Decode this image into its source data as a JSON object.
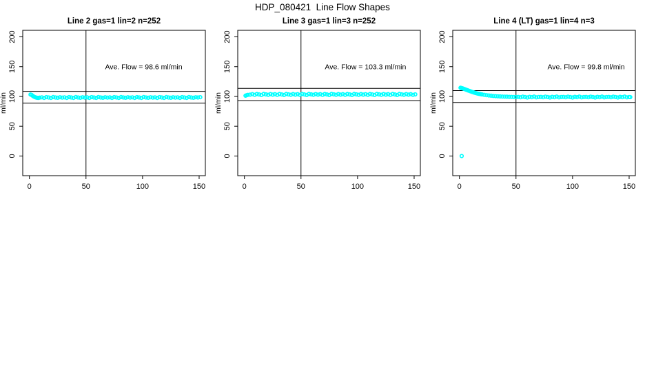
{
  "page_title": "HDP_080421  Line Flow Shapes",
  "colors": {
    "points": "#00FFFF",
    "axis": "#000000",
    "text": "#000000",
    "background": "#FFFFFF"
  },
  "chart_data": [
    {
      "type": "scatter",
      "title": "Line 2 gas=1 lin=2 n=252",
      "n": 252,
      "ave_flow_ml_min": 98.6,
      "annotation": {
        "label": "Ave. Flow =  98.6  ml/min",
        "x": 101,
        "y": 150
      },
      "ylabel": "ml/min",
      "xticks": [
        0,
        50,
        100,
        150
      ],
      "yticks": [
        0,
        50,
        100,
        150,
        200
      ],
      "xlim": [
        -5.9,
        155.5
      ],
      "ylim": [
        -33,
        211
      ],
      "vline_x": 50,
      "hlines": [
        108.5,
        88.7
      ],
      "points": [
        [
          1,
          103.2
        ],
        [
          2,
          102.4
        ],
        [
          3,
          100.9
        ],
        [
          4,
          99.6
        ],
        [
          5,
          98.7
        ],
        [
          6,
          98.1
        ],
        [
          7,
          97.7
        ],
        [
          8,
          97.5
        ],
        [
          9,
          98
        ],
        [
          11,
          98.5
        ],
        [
          13,
          97.6
        ],
        [
          15,
          98.8
        ],
        [
          17,
          98.2
        ],
        [
          19,
          97.5
        ],
        [
          21,
          98.9
        ],
        [
          23,
          98.3
        ],
        [
          25,
          97.8
        ],
        [
          27,
          98.6
        ],
        [
          29,
          98
        ],
        [
          31,
          98.5
        ],
        [
          33,
          97.6
        ],
        [
          35,
          98.8
        ],
        [
          37,
          98.2
        ],
        [
          39,
          97.5
        ],
        [
          41,
          98.9
        ],
        [
          43,
          98.3
        ],
        [
          45,
          97.8
        ],
        [
          47,
          98.6
        ],
        [
          49,
          98
        ],
        [
          51,
          98.5
        ],
        [
          53,
          97.6
        ],
        [
          55,
          98.8
        ],
        [
          57,
          98.2
        ],
        [
          59,
          97.5
        ],
        [
          61,
          98.9
        ],
        [
          63,
          98.3
        ],
        [
          65,
          97.8
        ],
        [
          67,
          98.6
        ],
        [
          69,
          98
        ],
        [
          71,
          98.5
        ],
        [
          73,
          97.6
        ],
        [
          75,
          98.8
        ],
        [
          77,
          98.2
        ],
        [
          79,
          97.5
        ],
        [
          81,
          98.9
        ],
        [
          83,
          98.3
        ],
        [
          85,
          97.8
        ],
        [
          87,
          98.6
        ],
        [
          89,
          98
        ],
        [
          91,
          98.5
        ],
        [
          93,
          97.6
        ],
        [
          95,
          98.8
        ],
        [
          97,
          98.2
        ],
        [
          99,
          97.5
        ],
        [
          101,
          98.9
        ],
        [
          103,
          98.3
        ],
        [
          105,
          97.8
        ],
        [
          107,
          98.6
        ],
        [
          109,
          98
        ],
        [
          111,
          98.5
        ],
        [
          113,
          97.6
        ],
        [
          115,
          98.8
        ],
        [
          117,
          98.2
        ],
        [
          119,
          97.5
        ],
        [
          121,
          98.9
        ],
        [
          123,
          98.3
        ],
        [
          125,
          97.8
        ],
        [
          127,
          98.6
        ],
        [
          129,
          98
        ],
        [
          131,
          98.5
        ],
        [
          133,
          97.6
        ],
        [
          135,
          98.8
        ],
        [
          137,
          98.2
        ],
        [
          139,
          97.5
        ],
        [
          141,
          98.9
        ],
        [
          143,
          98.3
        ],
        [
          145,
          97.8
        ],
        [
          147,
          98.6
        ],
        [
          149,
          98.2
        ],
        [
          151,
          98.7
        ]
      ]
    },
    {
      "type": "scatter",
      "title": "Line 3 gas=1 lin=3 n=252",
      "n": 252,
      "ave_flow_ml_min": 103.3,
      "annotation": {
        "label": "Ave. Flow =  103.3  ml/min",
        "x": 107,
        "y": 150
      },
      "ylabel": "ml/min",
      "xticks": [
        0,
        50,
        100,
        150
      ],
      "yticks": [
        0,
        50,
        100,
        150,
        200
      ],
      "xlim": [
        -5.9,
        155.5
      ],
      "ylim": [
        -33,
        211
      ],
      "vline_x": 50,
      "hlines": [
        113.6,
        93.0
      ],
      "points": [
        [
          1,
          101.3
        ],
        [
          2,
          102.1
        ],
        [
          3,
          102.7
        ],
        [
          5,
          103
        ],
        [
          7,
          103.8
        ],
        [
          9,
          102.6
        ],
        [
          11,
          104
        ],
        [
          13,
          103.3
        ],
        [
          15,
          102.4
        ],
        [
          17,
          104.1
        ],
        [
          19,
          103.5
        ],
        [
          21,
          102.8
        ],
        [
          23,
          103.9
        ],
        [
          25,
          103
        ],
        [
          27,
          103.8
        ],
        [
          29,
          102.6
        ],
        [
          31,
          104
        ],
        [
          33,
          103.3
        ],
        [
          35,
          102.4
        ],
        [
          37,
          104.1
        ],
        [
          39,
          103.5
        ],
        [
          41,
          102.8
        ],
        [
          43,
          103.9
        ],
        [
          45,
          103
        ],
        [
          47,
          103.8
        ],
        [
          49,
          102.6
        ],
        [
          51,
          104
        ],
        [
          53,
          103.3
        ],
        [
          55,
          102.4
        ],
        [
          57,
          104.1
        ],
        [
          59,
          103.5
        ],
        [
          61,
          102.8
        ],
        [
          63,
          103.9
        ],
        [
          65,
          103
        ],
        [
          67,
          103.8
        ],
        [
          69,
          102.6
        ],
        [
          71,
          104
        ],
        [
          73,
          103.3
        ],
        [
          75,
          102.4
        ],
        [
          77,
          104.1
        ],
        [
          79,
          103.5
        ],
        [
          81,
          102.8
        ],
        [
          83,
          103.9
        ],
        [
          85,
          103
        ],
        [
          87,
          103.8
        ],
        [
          89,
          102.6
        ],
        [
          91,
          104
        ],
        [
          93,
          103.3
        ],
        [
          95,
          102.4
        ],
        [
          97,
          104.1
        ],
        [
          99,
          103.5
        ],
        [
          101,
          102.8
        ],
        [
          103,
          103.9
        ],
        [
          105,
          103
        ],
        [
          107,
          103.8
        ],
        [
          109,
          102.6
        ],
        [
          111,
          104
        ],
        [
          113,
          103.3
        ],
        [
          115,
          102.4
        ],
        [
          117,
          104.1
        ],
        [
          119,
          103.5
        ],
        [
          121,
          102.8
        ],
        [
          123,
          103.9
        ],
        [
          125,
          103
        ],
        [
          127,
          103.8
        ],
        [
          129,
          102.6
        ],
        [
          131,
          104
        ],
        [
          133,
          103.3
        ],
        [
          135,
          102.4
        ],
        [
          137,
          104.1
        ],
        [
          139,
          103.5
        ],
        [
          141,
          102.8
        ],
        [
          143,
          103.9
        ],
        [
          145,
          103
        ],
        [
          147,
          103.8
        ],
        [
          149,
          102.6
        ],
        [
          151,
          103.4
        ]
      ]
    },
    {
      "type": "scatter",
      "title": "Line 4 (LT) gas=1 lin=4 n=3",
      "n": 3,
      "ave_flow_ml_min": 99.8,
      "annotation": {
        "label": "Ave. Flow =  99.8  ml/min",
        "x": 112,
        "y": 150
      },
      "ylabel": "ml/min",
      "xticks": [
        0,
        50,
        100,
        150
      ],
      "yticks": [
        0,
        50,
        100,
        150,
        200
      ],
      "xlim": [
        -5.9,
        155.5
      ],
      "ylim": [
        -33,
        211
      ],
      "vline_x": 50,
      "hlines": [
        109.8,
        89.8
      ],
      "points": [
        [
          2,
          0
        ],
        [
          1,
          114.5
        ],
        [
          1.5,
          114.2
        ],
        [
          2,
          113.9
        ],
        [
          2.5,
          113.6
        ],
        [
          3,
          113.4
        ],
        [
          4,
          112.7
        ],
        [
          5,
          112
        ],
        [
          6,
          111.2
        ],
        [
          7,
          110.5
        ],
        [
          8,
          109.8
        ],
        [
          9,
          109.1
        ],
        [
          10,
          108.4
        ],
        [
          11,
          107.7
        ],
        [
          12,
          107.1
        ],
        [
          13,
          106.5
        ],
        [
          14,
          105.9
        ],
        [
          15,
          105.4
        ],
        [
          16,
          104.9
        ],
        [
          17,
          104.5
        ],
        [
          18,
          104.1
        ],
        [
          19,
          103.7
        ],
        [
          20,
          103.3
        ],
        [
          22,
          102.7
        ],
        [
          24,
          102.1
        ],
        [
          26,
          101.6
        ],
        [
          28,
          101.2
        ],
        [
          30,
          100.8
        ],
        [
          32,
          100.5
        ],
        [
          34,
          100.2
        ],
        [
          36,
          100
        ],
        [
          38,
          99.8
        ],
        [
          40,
          99.6
        ],
        [
          42,
          99.5
        ],
        [
          44,
          99.3
        ],
        [
          46,
          99.2
        ],
        [
          48,
          99.1
        ],
        [
          50,
          99
        ],
        [
          52,
          99.2
        ],
        [
          54,
          98.6
        ],
        [
          56,
          99.6
        ],
        [
          58,
          98.9
        ],
        [
          60,
          98.3
        ],
        [
          62,
          99.3
        ],
        [
          64,
          98.7
        ],
        [
          66,
          99.8
        ],
        [
          68,
          98.5
        ],
        [
          70,
          99.1
        ],
        [
          72,
          99.2
        ],
        [
          74,
          98.6
        ],
        [
          76,
          99.6
        ],
        [
          78,
          98.9
        ],
        [
          80,
          98.3
        ],
        [
          82,
          99.3
        ],
        [
          84,
          98.7
        ],
        [
          86,
          99.8
        ],
        [
          88,
          98.5
        ],
        [
          90,
          99.1
        ],
        [
          92,
          99.2
        ],
        [
          94,
          98.6
        ],
        [
          96,
          99.6
        ],
        [
          98,
          98.9
        ],
        [
          100,
          98.3
        ],
        [
          102,
          99.3
        ],
        [
          104,
          98.7
        ],
        [
          106,
          99.8
        ],
        [
          108,
          98.5
        ],
        [
          110,
          99.1
        ],
        [
          112,
          99.2
        ],
        [
          114,
          98.6
        ],
        [
          116,
          99.6
        ],
        [
          118,
          98.9
        ],
        [
          120,
          98.3
        ],
        [
          122,
          99.3
        ],
        [
          124,
          98.7
        ],
        [
          126,
          99.8
        ],
        [
          128,
          98.5
        ],
        [
          130,
          99.1
        ],
        [
          132,
          99.2
        ],
        [
          134,
          98.6
        ],
        [
          136,
          99.6
        ],
        [
          138,
          98.9
        ],
        [
          140,
          98.3
        ],
        [
          142,
          99.3
        ],
        [
          144,
          98.7
        ],
        [
          146,
          99.8
        ],
        [
          148,
          98.5
        ],
        [
          150,
          99.1
        ],
        [
          151,
          98.8
        ]
      ]
    }
  ]
}
